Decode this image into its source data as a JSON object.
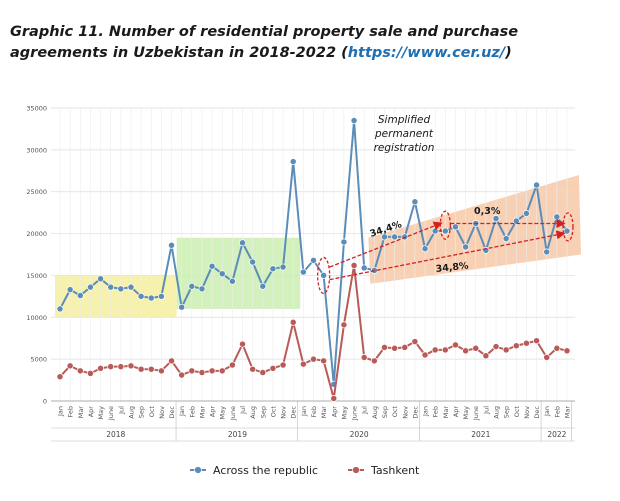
{
  "title": {
    "main": "Graphic 11. Number of residential property sale and purchase agreements in Uzbekistan in 2018-2022 (",
    "link": "https://www.cer.uz/",
    "close": ")"
  },
  "chart_data": {
    "type": "line",
    "ylim": [
      0,
      35000
    ],
    "yticks": [
      "0",
      "5000",
      "10000",
      "15000",
      "20000",
      "25000",
      "30000",
      "35000"
    ],
    "categories": [
      "Jan",
      "Feb",
      "Mar",
      "Apr",
      "May",
      "June",
      "Jul",
      "Aug",
      "Sep",
      "Oct",
      "Nov",
      "Dec",
      "Jan",
      "Feb",
      "Mar",
      "Apr",
      "May",
      "June",
      "Jul",
      "Aug",
      "Sep",
      "Oct",
      "Nov",
      "Dec",
      "Jan",
      "Feb",
      "Mar",
      "Apr",
      "May",
      "June",
      "Jul",
      "Aug",
      "Sep",
      "Oct",
      "Nov",
      "Dec",
      "Jan",
      "Feb",
      "Mar",
      "Apr",
      "May",
      "June",
      "Jul",
      "Aug",
      "Sep",
      "Oct",
      "Nov",
      "Dec",
      "Jan",
      "Feb",
      "Mar"
    ],
    "years": [
      {
        "label": "2018",
        "start": 0,
        "end": 11
      },
      {
        "label": "2019",
        "start": 12,
        "end": 23
      },
      {
        "label": "2020",
        "start": 24,
        "end": 35
      },
      {
        "label": "2021",
        "start": 36,
        "end": 47
      },
      {
        "label": "2022",
        "start": 48,
        "end": 50
      }
    ],
    "series": [
      {
        "name": "Across the republic",
        "color": "#5b8db8",
        "values": [
          11000,
          13300,
          12600,
          13600,
          14600,
          13600,
          13400,
          13600,
          12500,
          12300,
          12500,
          18600,
          11200,
          13700,
          13400,
          16100,
          15200,
          14300,
          18900,
          16600,
          13700,
          15800,
          16000,
          28600,
          15400,
          16800,
          15000,
          2000,
          19000,
          33500,
          15900,
          15600,
          19600,
          19600,
          19600,
          23800,
          18200,
          20300,
          20300,
          20800,
          18400,
          21200,
          18000,
          21800,
          19400,
          21500,
          22400,
          25800,
          17800,
          22000,
          20300
        ]
      },
      {
        "name": "Tashkent",
        "color": "#b85b58",
        "values": [
          2900,
          4200,
          3600,
          3300,
          3900,
          4100,
          4100,
          4200,
          3800,
          3800,
          3600,
          4800,
          3100,
          3600,
          3400,
          3600,
          3600,
          4300,
          6800,
          3800,
          3400,
          3900,
          4300,
          9400,
          4400,
          5000,
          4800,
          300,
          9100,
          16200,
          5200,
          4800,
          6400,
          6300,
          6400,
          7100,
          5500,
          6100,
          6100,
          6700,
          6000,
          6300,
          5400,
          6500,
          6100,
          6600,
          6900,
          7200,
          5200,
          6300,
          6000
        ]
      }
    ],
    "annotations": {
      "registration": [
        "Simplified",
        "permanent",
        "registration"
      ],
      "pct_top_left": "34,4%",
      "pct_top_right": "0,3%",
      "pct_bottom": "34,8%"
    },
    "bands": [
      {
        "color": "#f5f0a0"
      },
      {
        "color": "#cbeeb0"
      },
      {
        "color": "#f7c9a8"
      }
    ],
    "grid": true,
    "legend_position": "bottom"
  }
}
